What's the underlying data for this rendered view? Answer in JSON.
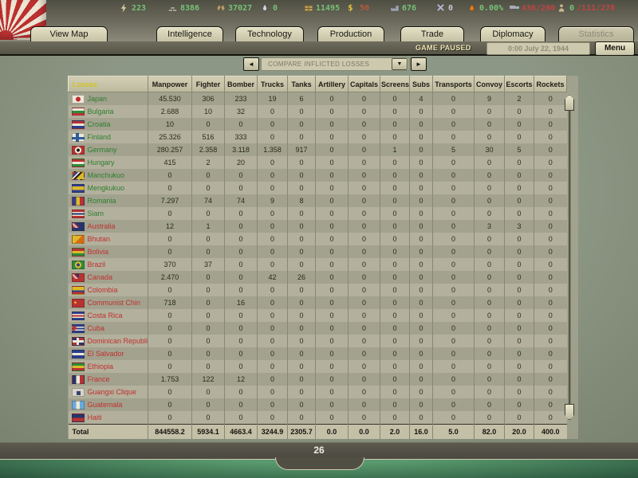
{
  "top_bar": {
    "resources": [
      {
        "name": "energy",
        "value": "223",
        "tone": "green"
      },
      {
        "name": "metal",
        "value": "8386",
        "tone": "green"
      },
      {
        "name": "rare-materials",
        "value": "37027",
        "tone": "green"
      },
      {
        "name": "oil",
        "value": "0",
        "tone": "green"
      },
      {
        "name": "supplies",
        "value": "11495",
        "tone": "green"
      },
      {
        "name": "money",
        "value": "50",
        "tone": "gold"
      },
      {
        "name": "industrial-capacity",
        "value": "676",
        "tone": "green"
      },
      {
        "name": "nukes",
        "value": "0",
        "tone": "plain"
      },
      {
        "name": "dissent",
        "value": "0.00%",
        "tone": "green"
      },
      {
        "name": "transport-capacity",
        "value": "436/200",
        "tone": "red"
      },
      {
        "name": "manpower",
        "parts": [
          {
            "text": "0",
            "tone": "green"
          },
          {
            "text": "/111/278",
            "tone": "red"
          }
        ]
      }
    ],
    "tabs": [
      {
        "label": "View Map",
        "disabled": false
      },
      {
        "label": "Intelligence",
        "disabled": false
      },
      {
        "label": "Technology",
        "disabled": false
      },
      {
        "label": "Production",
        "disabled": false
      },
      {
        "label": "Trade",
        "disabled": false
      },
      {
        "label": "Diplomacy",
        "disabled": false
      },
      {
        "label": "Statistics",
        "disabled": true
      }
    ]
  },
  "status_bar": {
    "paused_label": "GAME PAUSED",
    "date": "0:00 July 22, 1944",
    "menu_label": "Menu"
  },
  "selector": {
    "label": "COMPARE INFLICTED LOSSES",
    "left_arrow": "◄",
    "right_arrow": "►",
    "caret": "▼"
  },
  "table": {
    "first_column_header": "Losses",
    "columns": [
      "Manpower",
      "Fighter",
      "Bomber",
      "Trucks",
      "Tanks",
      "Artillery",
      "Capitals",
      "Screens",
      "Subs",
      "Transports",
      "Convoy",
      "Escorts",
      "Rockets"
    ],
    "rows": [
      {
        "country": "Japan",
        "side": "green",
        "flag": "japan",
        "values": [
          "45.530",
          "306",
          "233",
          "19",
          "6",
          "0",
          "0",
          "0",
          "4",
          "0",
          "9",
          "2",
          "0"
        ]
      },
      {
        "country": "Bulgaria",
        "side": "green",
        "flag": "bulgaria",
        "values": [
          "2.688",
          "10",
          "32",
          "0",
          "0",
          "0",
          "0",
          "0",
          "0",
          "0",
          "0",
          "0",
          "0"
        ]
      },
      {
        "country": "Croatia",
        "side": "green",
        "flag": "croatia",
        "values": [
          "10",
          "0",
          "0",
          "0",
          "0",
          "0",
          "0",
          "0",
          "0",
          "0",
          "0",
          "0",
          "0"
        ]
      },
      {
        "country": "Finland",
        "side": "green",
        "flag": "finland",
        "values": [
          "25.326",
          "516",
          "333",
          "0",
          "0",
          "0",
          "0",
          "0",
          "0",
          "0",
          "0",
          "0",
          "0"
        ]
      },
      {
        "country": "Germany",
        "side": "green",
        "flag": "germany",
        "values": [
          "280.257",
          "2.358",
          "3.118",
          "1.358",
          "917",
          "0",
          "0",
          "1",
          "0",
          "5",
          "30",
          "5",
          "0"
        ]
      },
      {
        "country": "Hungary",
        "side": "green",
        "flag": "hungary",
        "values": [
          "415",
          "2",
          "20",
          "0",
          "0",
          "0",
          "0",
          "0",
          "0",
          "0",
          "0",
          "0",
          "0"
        ]
      },
      {
        "country": "Manchukuo",
        "side": "green",
        "flag": "manchukuo",
        "values": [
          "0",
          "0",
          "0",
          "0",
          "0",
          "0",
          "0",
          "0",
          "0",
          "0",
          "0",
          "0",
          "0"
        ]
      },
      {
        "country": "Mengkukuo",
        "side": "green",
        "flag": "mengkukuo",
        "values": [
          "0",
          "0",
          "0",
          "0",
          "0",
          "0",
          "0",
          "0",
          "0",
          "0",
          "0",
          "0",
          "0"
        ]
      },
      {
        "country": "Romania",
        "side": "green",
        "flag": "romania",
        "values": [
          "7.297",
          "74",
          "74",
          "9",
          "8",
          "0",
          "0",
          "0",
          "0",
          "0",
          "0",
          "0",
          "0"
        ]
      },
      {
        "country": "Siam",
        "side": "green",
        "flag": "siam",
        "values": [
          "0",
          "0",
          "0",
          "0",
          "0",
          "0",
          "0",
          "0",
          "0",
          "0",
          "0",
          "0",
          "0"
        ]
      },
      {
        "country": "Australia",
        "side": "red",
        "flag": "australia",
        "values": [
          "12",
          "1",
          "0",
          "0",
          "0",
          "0",
          "0",
          "0",
          "0",
          "0",
          "3",
          "3",
          "0"
        ]
      },
      {
        "country": "Bhutan",
        "side": "red",
        "flag": "bhutan",
        "values": [
          "0",
          "0",
          "0",
          "0",
          "0",
          "0",
          "0",
          "0",
          "0",
          "0",
          "0",
          "0",
          "0"
        ]
      },
      {
        "country": "Bolivia",
        "side": "red",
        "flag": "bolivia",
        "values": [
          "0",
          "0",
          "0",
          "0",
          "0",
          "0",
          "0",
          "0",
          "0",
          "0",
          "0",
          "0",
          "0"
        ]
      },
      {
        "country": "Brazil",
        "side": "red",
        "flag": "brazil",
        "values": [
          "370",
          "37",
          "0",
          "0",
          "0",
          "0",
          "0",
          "0",
          "0",
          "0",
          "0",
          "0",
          "0"
        ]
      },
      {
        "country": "Canada",
        "side": "red",
        "flag": "canada",
        "values": [
          "2.470",
          "0",
          "0",
          "42",
          "26",
          "0",
          "0",
          "0",
          "0",
          "0",
          "0",
          "0",
          "0"
        ]
      },
      {
        "country": "Colombia",
        "side": "red",
        "flag": "colombia",
        "values": [
          "0",
          "0",
          "0",
          "0",
          "0",
          "0",
          "0",
          "0",
          "0",
          "0",
          "0",
          "0",
          "0"
        ]
      },
      {
        "country": "Communist Chin",
        "side": "red",
        "flag": "communist-china",
        "values": [
          "718",
          "0",
          "16",
          "0",
          "0",
          "0",
          "0",
          "0",
          "0",
          "0",
          "0",
          "0",
          "0"
        ]
      },
      {
        "country": "Costa Rica",
        "side": "red",
        "flag": "costa-rica",
        "values": [
          "0",
          "0",
          "0",
          "0",
          "0",
          "0",
          "0",
          "0",
          "0",
          "0",
          "0",
          "0",
          "0"
        ]
      },
      {
        "country": "Cuba",
        "side": "red",
        "flag": "cuba",
        "values": [
          "0",
          "0",
          "0",
          "0",
          "0",
          "0",
          "0",
          "0",
          "0",
          "0",
          "0",
          "0",
          "0"
        ]
      },
      {
        "country": "Dominican Republi",
        "side": "red",
        "flag": "dominican-republic",
        "values": [
          "0",
          "0",
          "0",
          "0",
          "0",
          "0",
          "0",
          "0",
          "0",
          "0",
          "0",
          "0",
          "0"
        ]
      },
      {
        "country": "El Salvador",
        "side": "red",
        "flag": "el-salvador",
        "values": [
          "0",
          "0",
          "0",
          "0",
          "0",
          "0",
          "0",
          "0",
          "0",
          "0",
          "0",
          "0",
          "0"
        ]
      },
      {
        "country": "Ethiopia",
        "side": "red",
        "flag": "ethiopia",
        "values": [
          "0",
          "0",
          "0",
          "0",
          "0",
          "0",
          "0",
          "0",
          "0",
          "0",
          "0",
          "0",
          "0"
        ]
      },
      {
        "country": "France",
        "side": "red",
        "flag": "france",
        "values": [
          "1.753",
          "122",
          "12",
          "0",
          "0",
          "0",
          "0",
          "0",
          "0",
          "0",
          "0",
          "0",
          "0"
        ]
      },
      {
        "country": "Guangxi Clique",
        "side": "red",
        "flag": "guangxi",
        "values": [
          "0",
          "0",
          "0",
          "0",
          "0",
          "0",
          "0",
          "0",
          "0",
          "0",
          "0",
          "0",
          "0"
        ]
      },
      {
        "country": "Guatemala",
        "side": "red",
        "flag": "guatemala",
        "values": [
          "0",
          "0",
          "0",
          "0",
          "0",
          "0",
          "0",
          "0",
          "0",
          "0",
          "0",
          "0",
          "0"
        ]
      },
      {
        "country": "Haiti",
        "side": "red",
        "flag": "haiti",
        "values": [
          "0",
          "0",
          "0",
          "0",
          "0",
          "0",
          "0",
          "0",
          "0",
          "0",
          "0",
          "0",
          "0"
        ]
      }
    ],
    "total_label": "Total",
    "total": [
      "844558.2",
      "5934.1",
      "4663.4",
      "3244.9",
      "2305.7",
      "0.0",
      "0.0",
      "2.0",
      "16.0",
      "5.0",
      "82.0",
      "20.0",
      "400.0"
    ]
  },
  "footer": {
    "page_number": "26"
  },
  "colors": {
    "positive_value": "#76c276",
    "negative_value": "#c04343",
    "country_ally": "#2f7d2f",
    "country_enemy": "#c03030",
    "ledger_header_accent": "#cfc520"
  }
}
